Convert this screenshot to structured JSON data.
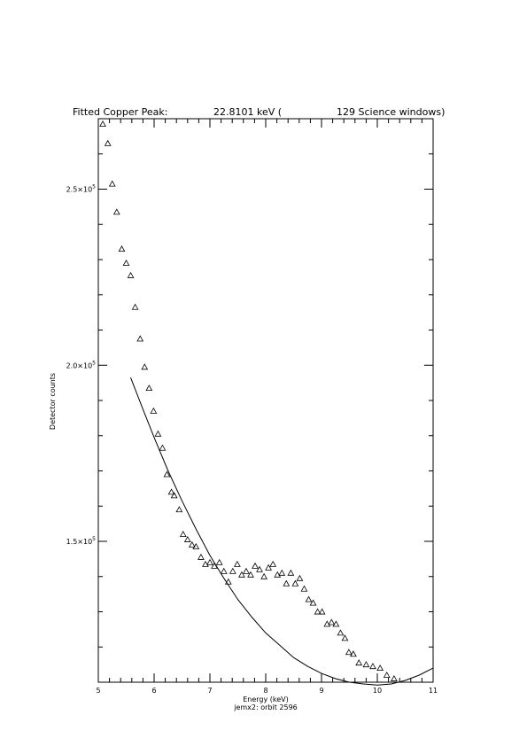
{
  "chart_data": {
    "type": "scatter",
    "title_prefix": "Fitted Copper Peak:",
    "title_value": "22.8101 keV (",
    "title_suffix": "129 Science windows)",
    "xlabel": "Energy (keV)",
    "ylabel": "Detector counts",
    "caption": "jemx2: orbit 2596",
    "xlim": [
      5,
      11
    ],
    "ylim": [
      110000,
      270000
    ],
    "x_ticks": [
      "5",
      "6",
      "7",
      "8",
      "9",
      "10",
      "11"
    ],
    "y_ticks": [
      {
        "value": 150000,
        "mantissa": "1.5×10",
        "exp": "5"
      },
      {
        "value": 200000,
        "mantissa": "2.0×10",
        "exp": "5"
      },
      {
        "value": 250000,
        "mantissa": "2.5×10",
        "exp": "5"
      }
    ],
    "marker": "triangle",
    "series": [
      {
        "points": [
          [
            5.08,
            268500
          ],
          [
            5.17,
            263000
          ],
          [
            5.25,
            251500
          ],
          [
            5.33,
            243500
          ],
          [
            5.42,
            233000
          ],
          [
            5.5,
            229000
          ],
          [
            5.58,
            225500
          ],
          [
            5.66,
            216500
          ],
          [
            5.75,
            207500
          ],
          [
            5.83,
            199500
          ],
          [
            5.91,
            193500
          ],
          [
            5.99,
            187000
          ],
          [
            6.07,
            180500
          ],
          [
            6.15,
            176500
          ],
          [
            6.23,
            169000
          ],
          [
            6.31,
            164000
          ],
          [
            6.36,
            163000
          ],
          [
            6.45,
            159000
          ],
          [
            6.52,
            152000
          ],
          [
            6.6,
            150500
          ],
          [
            6.68,
            149000
          ],
          [
            6.75,
            148500
          ],
          [
            6.84,
            145500
          ],
          [
            6.92,
            143500
          ],
          [
            7.0,
            144000
          ],
          [
            7.08,
            143000
          ],
          [
            7.17,
            144000
          ],
          [
            7.25,
            141500
          ],
          [
            7.33,
            138500
          ],
          [
            7.41,
            141500
          ],
          [
            7.49,
            143500
          ],
          [
            7.57,
            140500
          ],
          [
            7.65,
            141500
          ],
          [
            7.73,
            140500
          ],
          [
            7.81,
            143000
          ],
          [
            7.89,
            142000
          ],
          [
            7.97,
            140000
          ],
          [
            8.05,
            142500
          ],
          [
            8.13,
            143500
          ],
          [
            8.21,
            140500
          ],
          [
            8.29,
            141000
          ],
          [
            8.37,
            138000
          ],
          [
            8.45,
            141000
          ],
          [
            8.53,
            138000
          ],
          [
            8.61,
            139500
          ],
          [
            8.69,
            136500
          ],
          [
            8.77,
            133500
          ],
          [
            8.85,
            132500
          ],
          [
            8.93,
            130000
          ],
          [
            9.01,
            130000
          ],
          [
            9.1,
            126500
          ],
          [
            9.18,
            127000
          ],
          [
            9.26,
            126500
          ],
          [
            9.34,
            124000
          ],
          [
            9.42,
            122500
          ],
          [
            9.49,
            118500
          ],
          [
            9.57,
            118000
          ],
          [
            9.67,
            115500
          ],
          [
            9.8,
            115000
          ],
          [
            9.92,
            114500
          ],
          [
            10.05,
            114000
          ],
          [
            10.17,
            112000
          ],
          [
            10.3,
            111000
          ]
        ]
      },
      {
        "type": "line",
        "fit": [
          [
            5.58,
            196500
          ],
          [
            5.8,
            187500
          ],
          [
            6.0,
            179500
          ],
          [
            6.25,
            170000
          ],
          [
            6.5,
            161500
          ],
          [
            6.75,
            153500
          ],
          [
            7.0,
            146000
          ],
          [
            7.25,
            139500
          ],
          [
            7.5,
            133500
          ],
          [
            7.75,
            128500
          ],
          [
            8.0,
            124000
          ],
          [
            8.25,
            120500
          ],
          [
            8.5,
            117000
          ],
          [
            8.75,
            114500
          ],
          [
            9.0,
            112500
          ],
          [
            9.25,
            111000
          ],
          [
            9.5,
            110000
          ],
          [
            9.75,
            109500
          ],
          [
            10.0,
            109200
          ],
          [
            10.25,
            109500
          ],
          [
            10.5,
            110500
          ],
          [
            10.75,
            112000
          ],
          [
            11.0,
            114000
          ]
        ]
      }
    ]
  }
}
